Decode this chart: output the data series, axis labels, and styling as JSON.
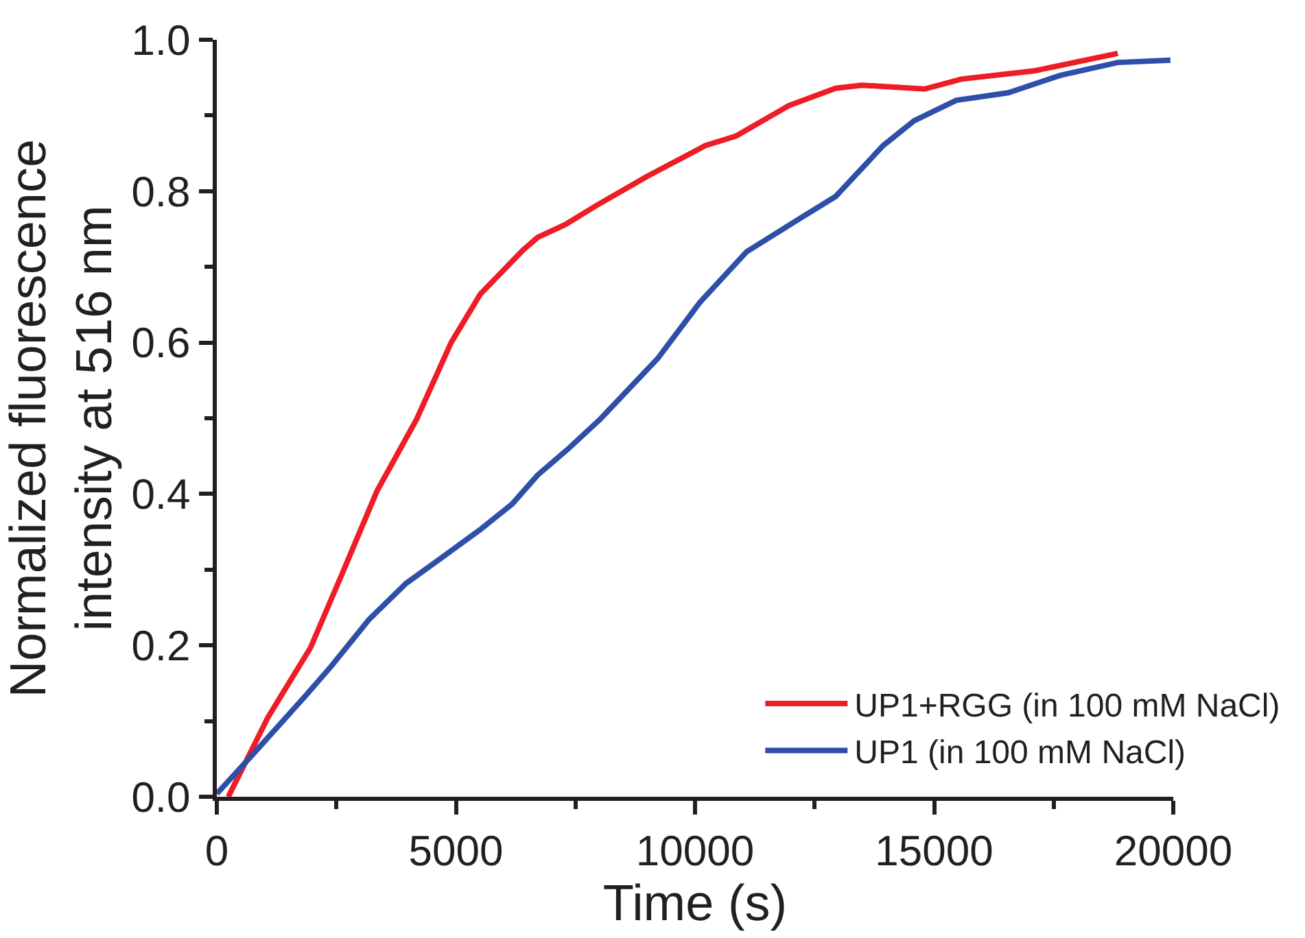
{
  "chart_data": {
    "type": "line",
    "xlabel": "Time (s)",
    "ylabel": "Normalized fluorescence\nintensity at 516 nm",
    "xlim": [
      0,
      20000
    ],
    "ylim": [
      0,
      1.0
    ],
    "xticks": [
      0,
      {
        "value": 2500,
        "label": null
      },
      5000,
      {
        "value": 7500,
        "label": null
      },
      10000,
      {
        "value": 12500,
        "label": null
      },
      15000,
      {
        "value": 17500,
        "label": null
      },
      20000
    ],
    "yticks": [
      {
        "value": 0,
        "label": "0.0"
      },
      {
        "value": 0.1,
        "label": null
      },
      0.2,
      {
        "value": 0.3,
        "label": null
      },
      0.4,
      {
        "value": 0.5,
        "label": null
      },
      0.6,
      {
        "value": 0.7,
        "label": null
      },
      0.8,
      {
        "value": 0.9,
        "label": null
      },
      {
        "value": 1.0,
        "label": "1.0"
      }
    ],
    "legend": "bottom right",
    "marker": "none",
    "line_style": "solid",
    "series": [
      {
        "name": "UP1+RGG (in 100 mM NaCl)",
        "color": "#ee1c25",
        "x": [
          240,
          1070,
          1960,
          2630,
          3350,
          4180,
          4900,
          5510,
          6400,
          6710,
          7290,
          7910,
          9010,
          10210,
          10860,
          11960,
          12940,
          13490,
          14800,
          15570,
          17100,
          18840
        ],
        "values": [
          0.0,
          0.105,
          0.197,
          0.296,
          0.404,
          0.499,
          0.6,
          0.664,
          0.722,
          0.739,
          0.756,
          0.78,
          0.82,
          0.86,
          0.873,
          0.913,
          0.936,
          0.94,
          0.935,
          0.948,
          0.959,
          0.982
        ]
      },
      {
        "name": "UP1 (in 100 mM NaCl)",
        "color": "#2e4fa8",
        "x": [
          0,
          740,
          1850,
          2400,
          3180,
          3960,
          4620,
          5510,
          6180,
          6710,
          7320,
          8020,
          9220,
          10100,
          11080,
          12170,
          12940,
          13930,
          14580,
          15460,
          16550,
          17640,
          18840,
          19940
        ],
        "values": [
          0.004,
          0.055,
          0.133,
          0.173,
          0.234,
          0.282,
          0.312,
          0.353,
          0.387,
          0.425,
          0.458,
          0.499,
          0.579,
          0.653,
          0.72,
          0.763,
          0.793,
          0.86,
          0.893,
          0.92,
          0.93,
          0.953,
          0.97,
          0.973
        ]
      }
    ]
  }
}
